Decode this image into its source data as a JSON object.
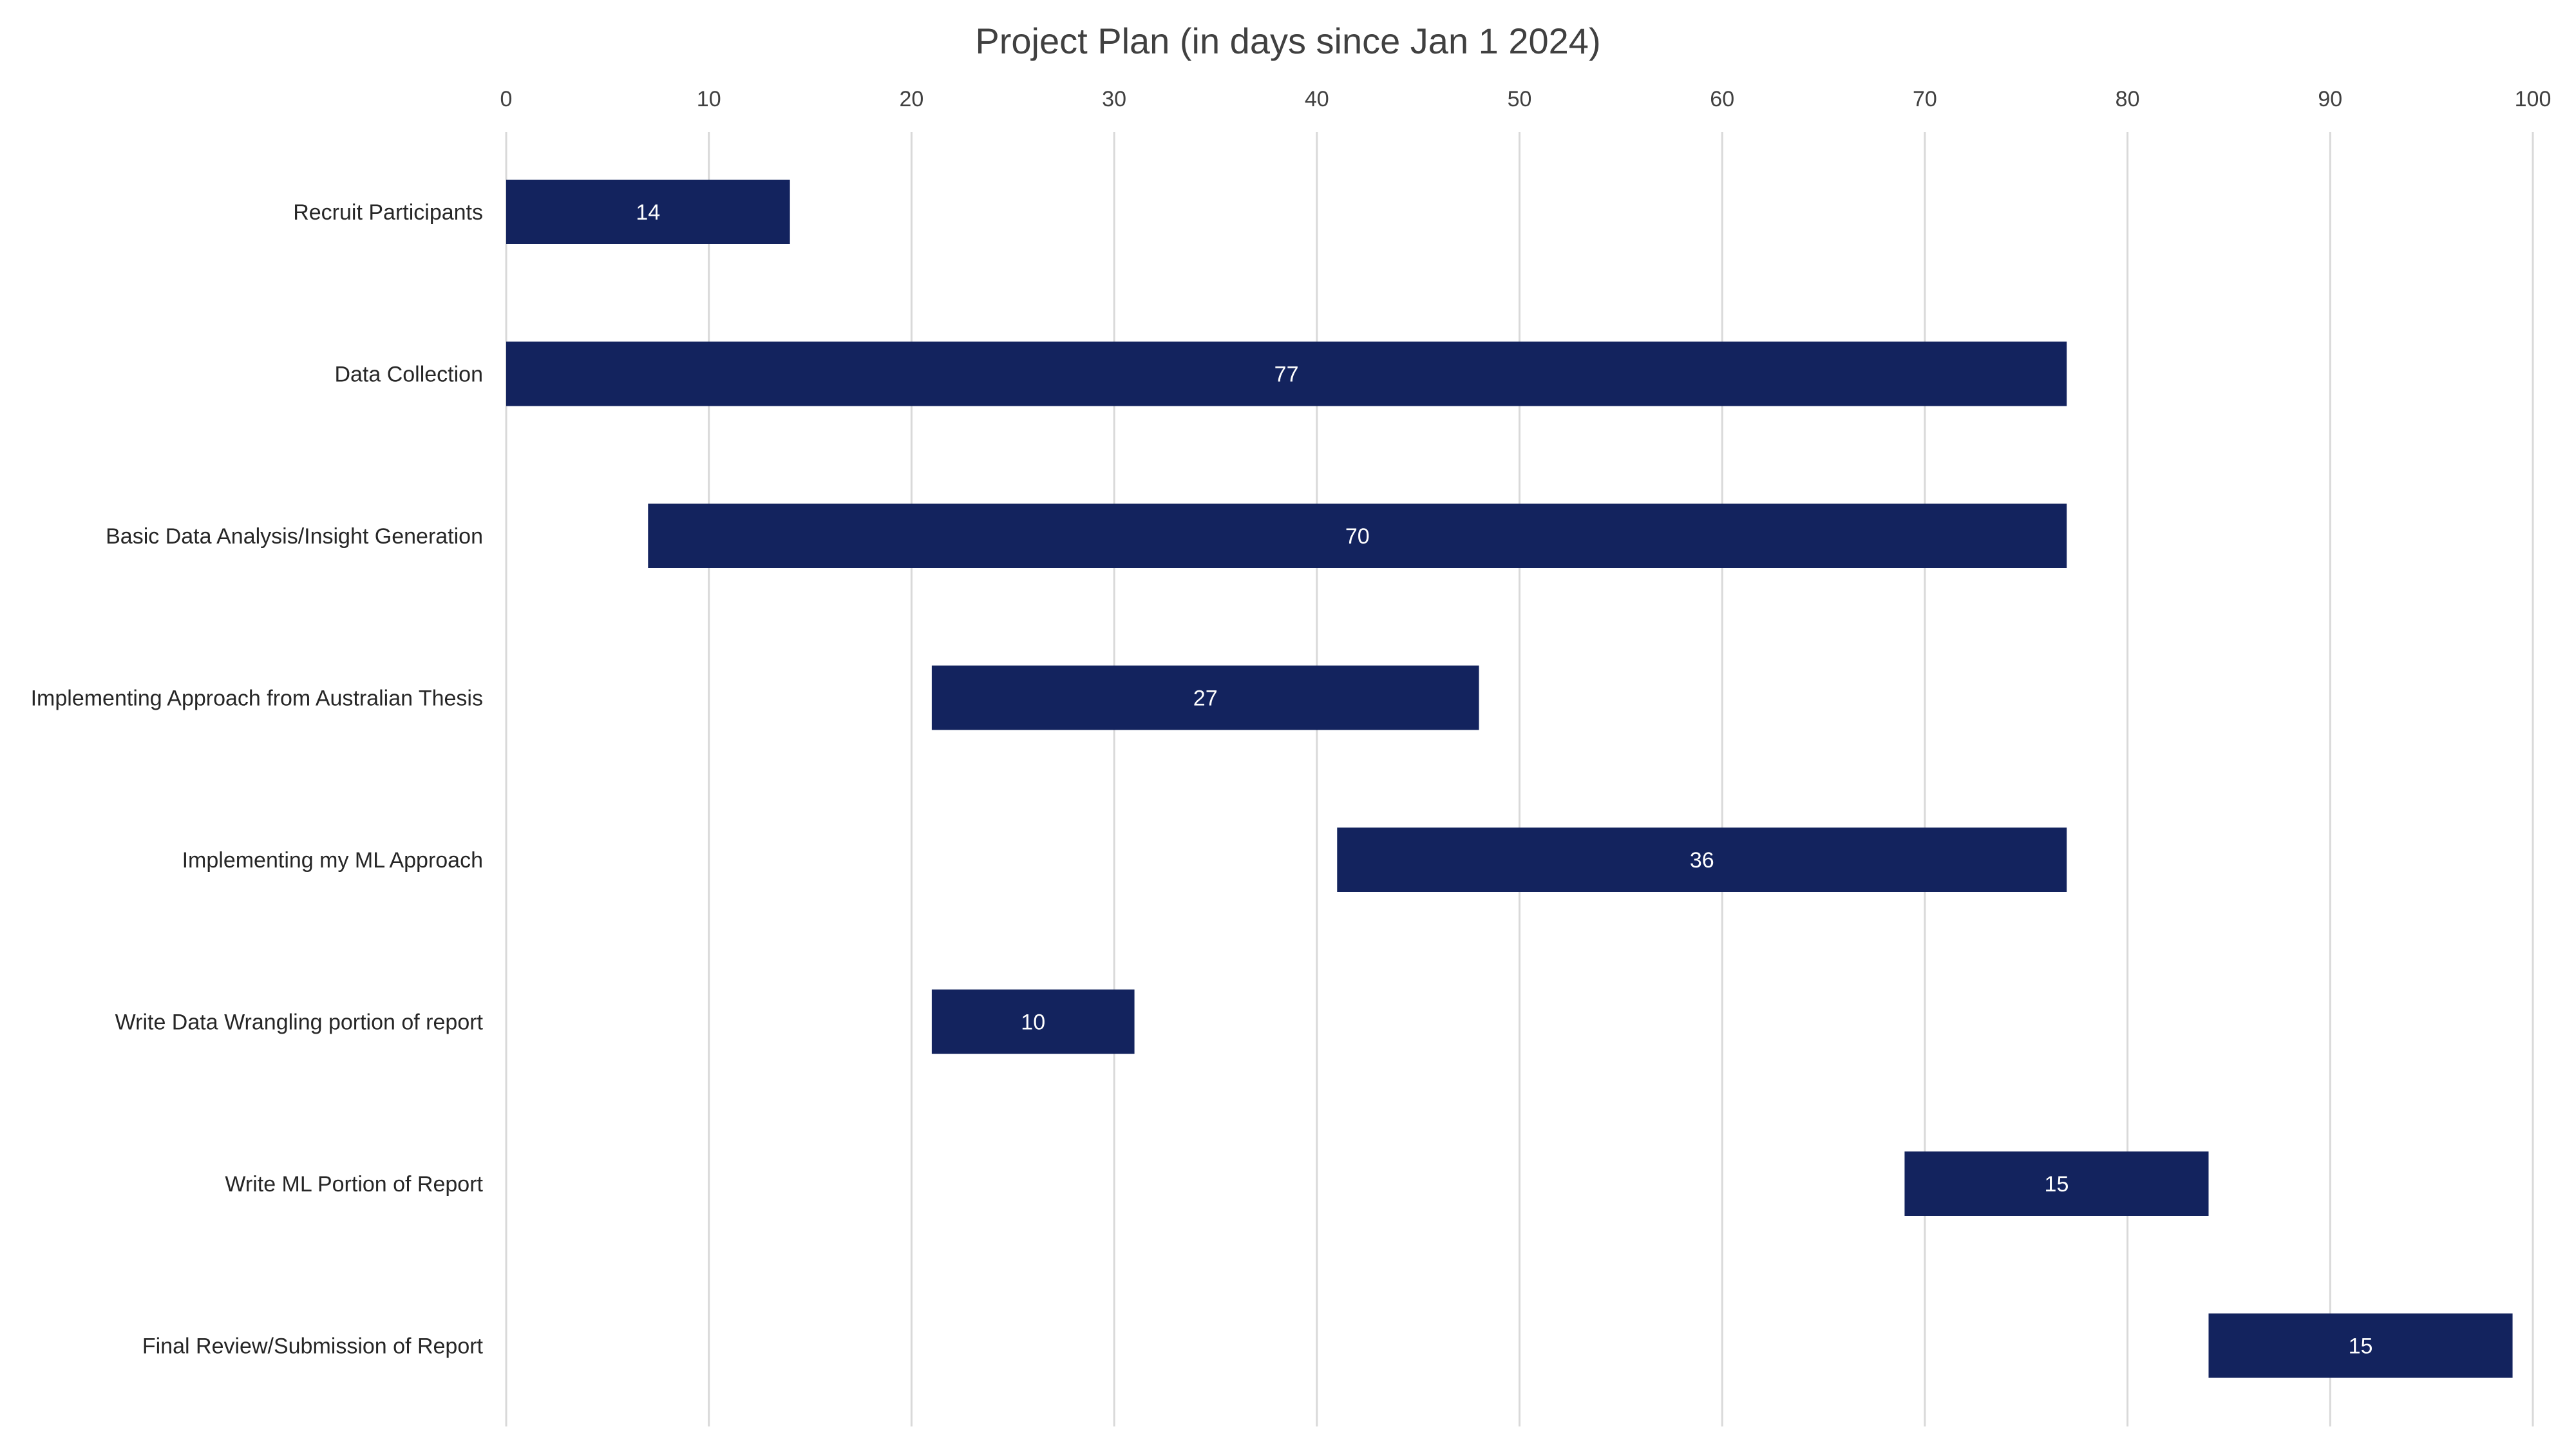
{
  "chart_data": {
    "type": "bar",
    "orientation": "horizontal",
    "style": "gantt",
    "title": "Project Plan (in days since Jan 1 2024)",
    "xlabel": "",
    "ylabel": "",
    "x_axis_position": "top",
    "xlim": [
      0,
      100
    ],
    "x_ticks": [
      0,
      10,
      20,
      30,
      40,
      50,
      60,
      70,
      80,
      90,
      100
    ],
    "grid": true,
    "legend": "none",
    "bar_color": "#13235e",
    "tasks": [
      {
        "label": "Recruit Participants",
        "start": 0,
        "duration": 14
      },
      {
        "label": "Data Collection",
        "start": 0,
        "duration": 77
      },
      {
        "label": "Basic Data Analysis/Insight Generation",
        "start": 7,
        "duration": 70
      },
      {
        "label": "Implementing Approach from Australian Thesis",
        "start": 21,
        "duration": 27
      },
      {
        "label": "Implementing my ML Approach",
        "start": 41,
        "duration": 36
      },
      {
        "label": "Write Data Wrangling portion of report",
        "start": 21,
        "duration": 10
      },
      {
        "label": "Write ML Portion of Report",
        "start": 69,
        "duration": 15
      },
      {
        "label": "Final Review/Submission of Report",
        "start": 84,
        "duration": 15
      }
    ]
  }
}
